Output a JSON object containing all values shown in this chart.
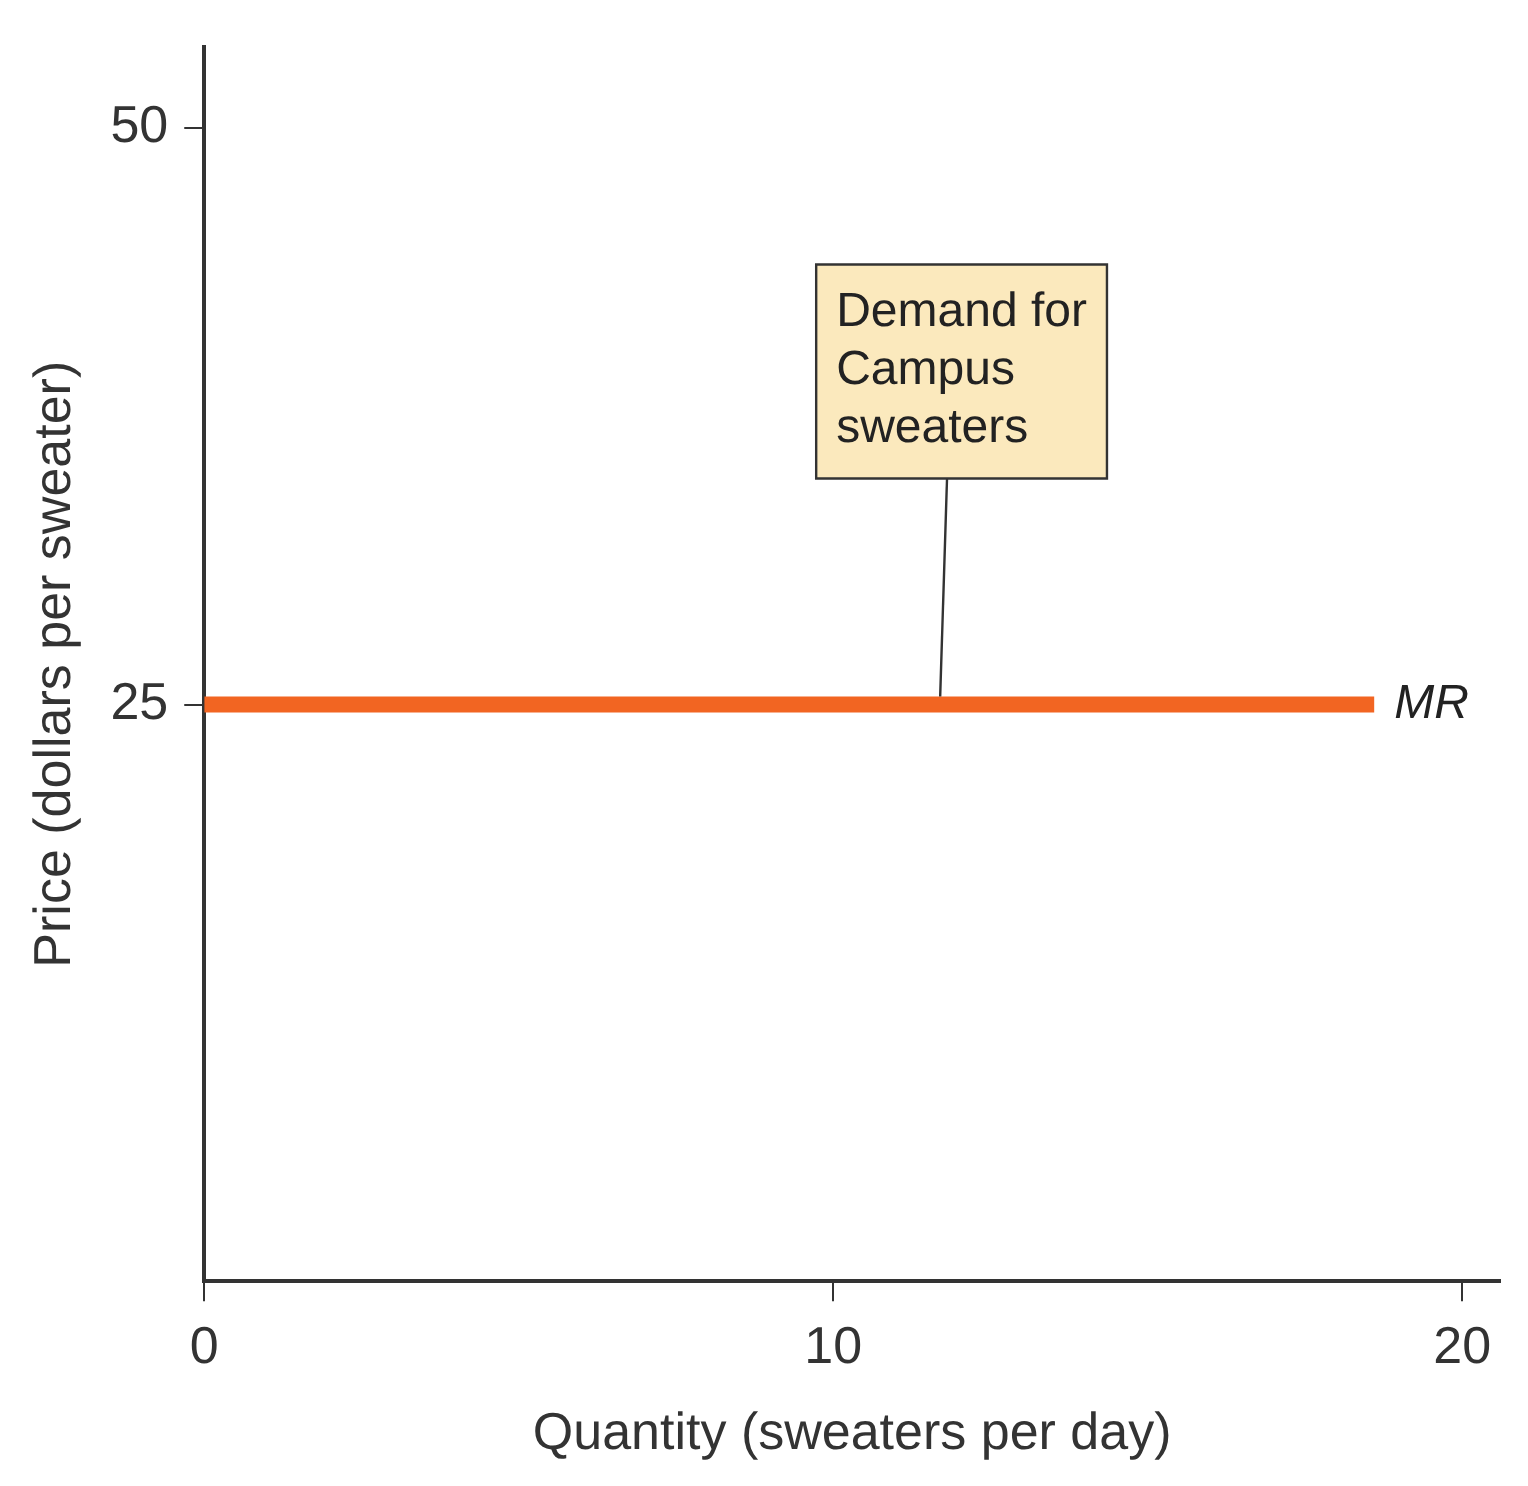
{
  "chart_data": {
    "type": "line",
    "xlabel": "Quantity (sweaters per day)",
    "ylabel": "Price (dollars per sweater)",
    "x": [
      0,
      18.6
    ],
    "series": [
      {
        "name": "MR",
        "color": "#f26522",
        "values": [
          25,
          25
        ]
      }
    ],
    "xlim": [
      0,
      20.6
    ],
    "ylim": [
      0,
      53.5
    ],
    "xticks": [
      0,
      10,
      20
    ],
    "yticks": [
      25,
      50
    ],
    "grid": false,
    "legend": false,
    "marker": "none",
    "line_style": "solid",
    "annotations": [
      {
        "text": "Demand for Campus sweaters",
        "x": 11.7,
        "y": 25
      }
    ]
  }
}
